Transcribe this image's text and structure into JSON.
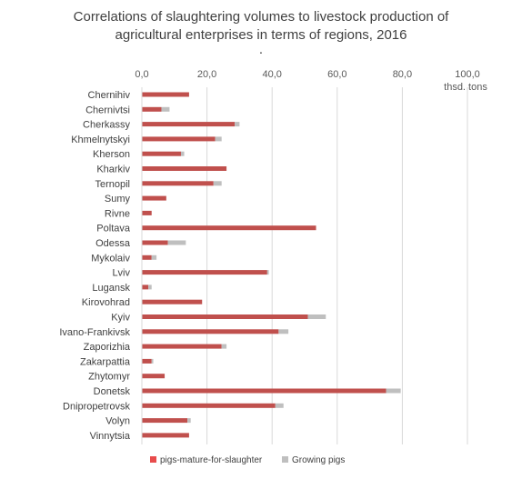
{
  "chart_data": {
    "type": "bar",
    "orientation": "horizontal",
    "stacked": true,
    "title": "Correlations of slaughtering volumes to livestock production of agricultural enterprises in terms of regions, 2016",
    "title_lines": [
      "Correlations of slaughtering volumes to livestock production of",
      "agricultural enterprises in terms of regions, 2016",
      "."
    ],
    "unit_label": "thsd. tons",
    "x_ticks": [
      "0,0",
      "20,0",
      "40,0",
      "60,0",
      "80,0",
      "100,0"
    ],
    "xlim": [
      0,
      100
    ],
    "grid": true,
    "legend_position": "bottom",
    "categories": [
      "Chernihiv",
      "Chernivtsi",
      "Cherkassy",
      "Khmelnytskyi",
      "Kherson",
      "Kharkiv",
      "Ternopil",
      "Sumy",
      "Rivne",
      "Poltava",
      "Odessa",
      "Mykolaiv",
      "Lviv",
      "Lugansk",
      "Kirovohrad",
      "Kyiv",
      "Ivano-Frankivsk",
      "Zaporizhia",
      "Zakarpattia",
      "Zhytomyr",
      "Donetsk",
      "Dnipropetrovsk",
      "Volyn",
      "Vinnytsia"
    ],
    "series": [
      {
        "name": "pigs-mature-for-slaughter",
        "color": "#c0504d",
        "highlight_color": "#e84c4c",
        "values": [
          14.5,
          6.0,
          28.5,
          22.5,
          12.0,
          26.0,
          22.0,
          7.5,
          3.0,
          53.5,
          8.0,
          3.0,
          38.5,
          2.0,
          18.5,
          51.0,
          42.0,
          24.5,
          3.0,
          7.0,
          75.0,
          41.0,
          14.0,
          14.5
        ]
      },
      {
        "name": "Growing pigs",
        "color": "#bfbfbf",
        "values": [
          0,
          2.5,
          1.5,
          2.0,
          1.0,
          0,
          2.5,
          0,
          0,
          0,
          5.5,
          1.5,
          0.5,
          1.0,
          0,
          5.5,
          3.0,
          1.5,
          0.5,
          0,
          4.5,
          2.5,
          1.0,
          0
        ]
      }
    ]
  }
}
